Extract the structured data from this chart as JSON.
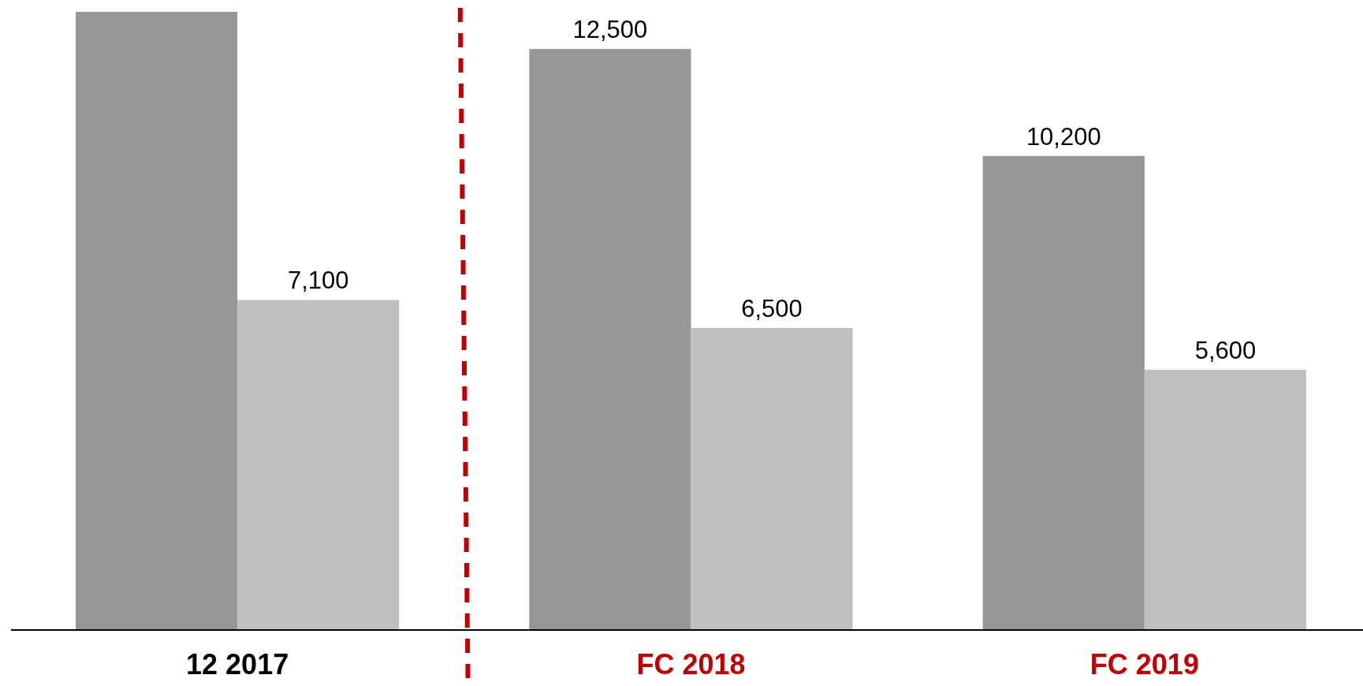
{
  "chart_data": {
    "type": "bar",
    "categories": [
      "12 2017",
      "FC 2018",
      "FC 2019"
    ],
    "series": [
      {
        "color": "#969696",
        "values": [
          13300,
          12500,
          10200
        ],
        "value_labels": [
          null,
          "12,500",
          "10,200"
        ]
      },
      {
        "color": "#c0c0c0",
        "values": [
          7100,
          6500,
          5600
        ],
        "value_labels": [
          "7,100",
          "6,500",
          "5,600"
        ]
      }
    ],
    "ylim": [
      0,
      13300
    ],
    "tick_labels": "x"
  }
}
